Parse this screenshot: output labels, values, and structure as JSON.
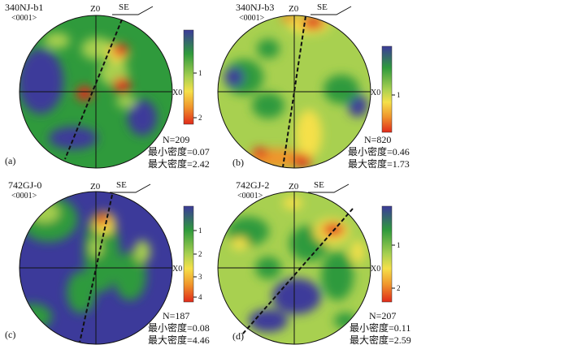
{
  "panels": [
    {
      "id": "a",
      "title": "340NJ-b1",
      "subtitle": "<0001>",
      "z_label": "Z0",
      "dir_label": "SE",
      "x_label": "X0",
      "panel_letter": "(a)",
      "n_text": "N=209",
      "min_text": "最小密度=0.07",
      "max_text": "最大密度=2.42",
      "colorbar_ticks": [
        "1",
        "2"
      ],
      "colorbar_colors": [
        "#3c3a9a",
        "#2f9a3c",
        "#a8d050",
        "#f5e04a",
        "#f0952c",
        "#e02a1a"
      ]
    },
    {
      "id": "b",
      "title": "340NJ-b3",
      "subtitle": "<0001>",
      "z_label": "Z0",
      "dir_label": "SE",
      "x_label": "X0",
      "panel_letter": "(b)",
      "n_text": "N=820",
      "min_text": "最小密度=0.46",
      "max_text": "最大密度=1.73",
      "colorbar_ticks": [
        "1"
      ],
      "colorbar_colors": [
        "#3c3a9a",
        "#2f9a3c",
        "#a8d050",
        "#f5e04a",
        "#f0952c",
        "#e02a1a"
      ]
    },
    {
      "id": "c",
      "title": "742GJ-0",
      "subtitle": "<0001>",
      "z_label": "Z0",
      "dir_label": "SE",
      "x_label": "X0",
      "panel_letter": "(c)",
      "n_text": "N=187",
      "min_text": "最小密度=0.08",
      "max_text": "最大密度=4.46",
      "colorbar_ticks": [
        "1",
        "2",
        "3",
        "4"
      ],
      "colorbar_colors": [
        "#3c3a9a",
        "#2f9a3c",
        "#a8d050",
        "#f5e04a",
        "#f0952c",
        "#e02a1a"
      ]
    },
    {
      "id": "d",
      "title": "742GJ-2",
      "subtitle": "<0001>",
      "z_label": "Z0",
      "dir_label": "SE",
      "x_label": "X0",
      "panel_letter": "(d)",
      "n_text": "N=207",
      "min_text": "最小密度=0.11",
      "max_text": "最大密度=2.59",
      "colorbar_ticks": [
        "1",
        "2"
      ],
      "colorbar_colors": [
        "#3c3a9a",
        "#2f9a3c",
        "#a8d050",
        "#f5e04a",
        "#f0952c",
        "#e02a1a"
      ]
    }
  ]
}
